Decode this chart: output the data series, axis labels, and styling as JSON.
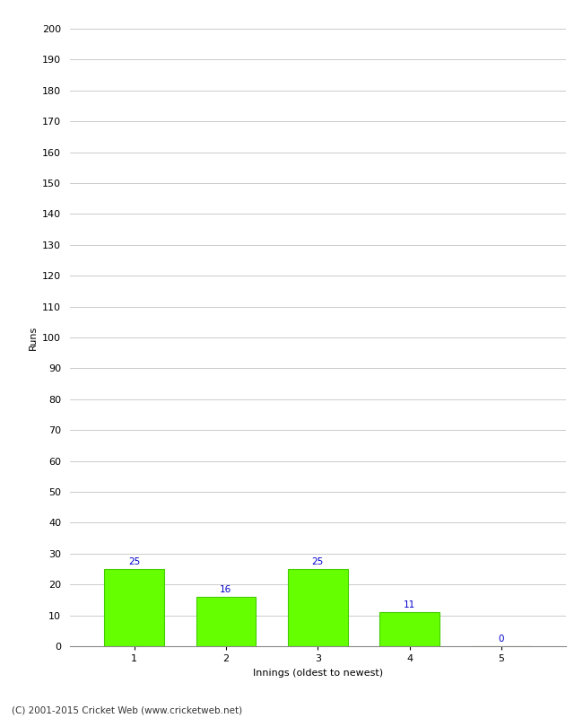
{
  "categories": [
    "1",
    "2",
    "3",
    "4",
    "5"
  ],
  "values": [
    25,
    16,
    25,
    11,
    0
  ],
  "bar_color": "#66ff00",
  "bar_edge_color": "#44cc00",
  "value_label_color": "#0000cc",
  "xlabel": "Innings (oldest to newest)",
  "ylabel": "Runs",
  "ylim": [
    0,
    200
  ],
  "yticks": [
    0,
    10,
    20,
    30,
    40,
    50,
    60,
    70,
    80,
    90,
    100,
    110,
    120,
    130,
    140,
    150,
    160,
    170,
    180,
    190,
    200
  ],
  "grid_color": "#cccccc",
  "background_color": "#ffffff",
  "footer_text": "(C) 2001-2015 Cricket Web (www.cricketweb.net)",
  "value_fontsize": 7.5,
  "axis_label_fontsize": 8,
  "tick_fontsize": 8,
  "footer_fontsize": 7.5
}
